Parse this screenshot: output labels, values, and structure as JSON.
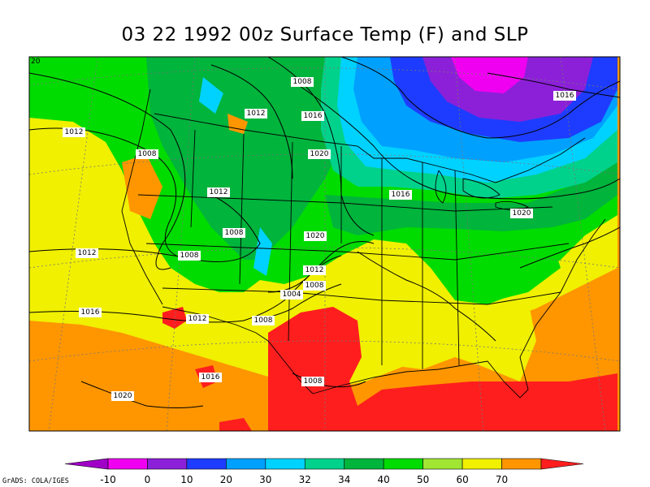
{
  "title": "03 22 1992 00z Surface Temp (F) and SLP",
  "corner_label": "20",
  "credit": "GrADS: COLA/IGES",
  "colorbar": {
    "colors": [
      "#a000c8",
      "#f000f0",
      "#8c20d8",
      "#1e3cff",
      "#00a0ff",
      "#00d2ff",
      "#00d28c",
      "#00b43c",
      "#00dc00",
      "#a0e632",
      "#f0f000",
      "#ff9600",
      "#ff1e1e"
    ],
    "labels": [
      "-10",
      "0",
      "10",
      "20",
      "30",
      "32",
      "34",
      "40",
      "50",
      "60",
      "70"
    ]
  },
  "isobar_labels": [
    "1008",
    "1012",
    "1016",
    "1012",
    "1008",
    "1020",
    "1012",
    "1016",
    "1020",
    "1008",
    "1020",
    "1012",
    "1008",
    "1012",
    "1004",
    "1008",
    "1016",
    "1012",
    "1008",
    "1016",
    "1008",
    "1020",
    "1016"
  ],
  "chart_data": {
    "type": "map",
    "variable": "Surface Temp (F) and SLP",
    "temperature_levels_F": [
      -10,
      0,
      10,
      20,
      30,
      32,
      34,
      40,
      50,
      60,
      70
    ],
    "sea_level_pressure_contours_hPa": [
      1004,
      1008,
      1012,
      1016,
      1020
    ]
  }
}
